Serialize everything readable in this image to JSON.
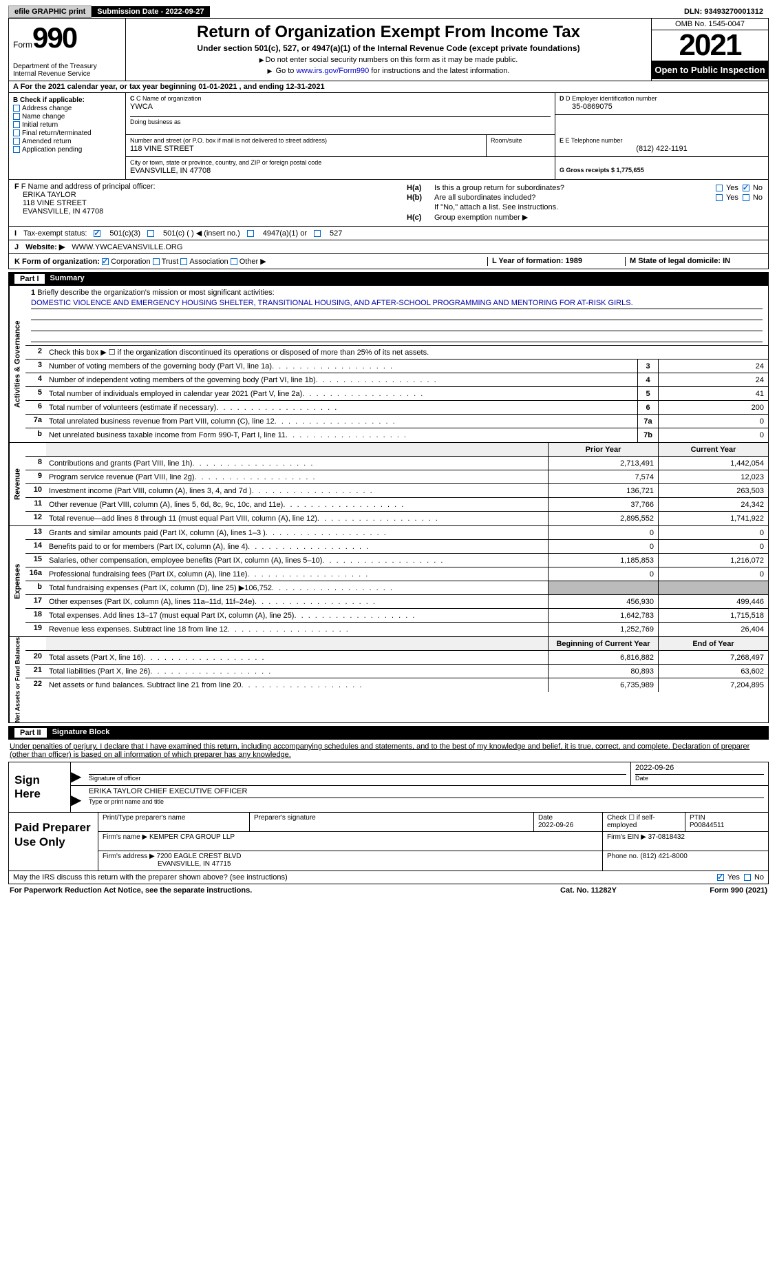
{
  "topbar": {
    "efile_label": "efile GRAPHIC print",
    "submission_label": "Submission Date - 2022-09-27",
    "dln_label": "DLN: 93493270001312"
  },
  "header": {
    "form_word": "Form",
    "form_num": "990",
    "dept": "Department of the Treasury Internal Revenue Service",
    "title": "Return of Organization Exempt From Income Tax",
    "subtitle1": "Under section 501(c), 527, or 4947(a)(1) of the Internal Revenue Code (except private foundations)",
    "subtitle2a": "Do not enter social security numbers on this form as it may be made public.",
    "subtitle2b_pre": "Go to ",
    "subtitle2b_link": "www.irs.gov/Form990",
    "subtitle2b_post": " for instructions and the latest information.",
    "omb": "OMB No. 1545-0047",
    "year": "2021",
    "open": "Open to Public Inspection"
  },
  "row_a": "A For the 2021 calendar year, or tax year beginning 01-01-2021   , and ending 12-31-2021",
  "col_b": {
    "head": "B Check if applicable:",
    "opts": [
      "Address change",
      "Name change",
      "Initial return",
      "Final return/terminated",
      "Amended return",
      "Application pending"
    ]
  },
  "col_c": {
    "name_lbl": "C Name of organization",
    "name": "YWCA",
    "dba_lbl": "Doing business as",
    "street_lbl": "Number and street (or P.O. box if mail is not delivered to street address)",
    "street": "118 VINE STREET",
    "room_lbl": "Room/suite",
    "city_lbl": "City or town, state or province, country, and ZIP or foreign postal code",
    "city": "EVANSVILLE, IN  47708"
  },
  "col_d": {
    "ein_lbl": "D Employer identification number",
    "ein": "35-0869075",
    "phone_lbl": "E Telephone number",
    "phone": "(812) 422-1191",
    "gross_lbl": "G Gross receipts $ 1,775,655"
  },
  "col_f": {
    "lbl": "F Name and address of principal officer:",
    "name": "ERIKA TAYLOR",
    "addr1": "118 VINE STREET",
    "addr2": "EVANSVILLE, IN  47708"
  },
  "col_h": {
    "a1": "H(a)",
    "a1txt": "Is this a group return for subordinates?",
    "b1": "H(b)",
    "b1txt": "Are all subordinates included?",
    "note": "If \"No,\" attach a list. See instructions.",
    "c1": "H(c)",
    "c1txt": "Group exemption number ▶"
  },
  "row_i": {
    "lbl": "I",
    "txt": "Tax-exempt status:",
    "o1": "501(c)(3)",
    "o2": "501(c) (  ) ◀ (insert no.)",
    "o3": "4947(a)(1) or",
    "o4": "527"
  },
  "row_j": {
    "lbl": "J",
    "txt": "Website: ▶",
    "val": "WWW.YWCAEVANSVILLE.ORG"
  },
  "row_k": {
    "lbl": "K Form of organization:",
    "o1": "Corporation",
    "o2": "Trust",
    "o3": "Association",
    "o4": "Other ▶",
    "l_lbl": "L Year of formation: 1989",
    "m_lbl": "M State of legal domicile: IN"
  },
  "part1": {
    "num": "Part I",
    "title": "Summary"
  },
  "side_labels": [
    "Activities & Governance",
    "Revenue",
    "Expenses",
    "Net Assets or Fund Balances"
  ],
  "mission": {
    "lbl": "1",
    "desc": "Briefly describe the organization's mission or most significant activities:",
    "text": "DOMESTIC VIOLENCE AND EMERGENCY HOUSING SHELTER, TRANSITIONAL HOUSING, AND AFTER-SCHOOL PROGRAMMING AND MENTORING FOR AT-RISK GIRLS."
  },
  "line2": "Check this box ▶ ☐ if the organization discontinued its operations or disposed of more than 25% of its net assets.",
  "gov_rows": [
    {
      "n": "3",
      "d": "Number of voting members of the governing body (Part VI, line 1a)",
      "b": "3",
      "v": "24"
    },
    {
      "n": "4",
      "d": "Number of independent voting members of the governing body (Part VI, line 1b)",
      "b": "4",
      "v": "24"
    },
    {
      "n": "5",
      "d": "Total number of individuals employed in calendar year 2021 (Part V, line 2a)",
      "b": "5",
      "v": "41"
    },
    {
      "n": "6",
      "d": "Total number of volunteers (estimate if necessary)",
      "b": "6",
      "v": "200"
    },
    {
      "n": "7a",
      "d": "Total unrelated business revenue from Part VIII, column (C), line 12",
      "b": "7a",
      "v": "0"
    },
    {
      "n": "b",
      "d": "Net unrelated business taxable income from Form 990-T, Part I, line 11",
      "b": "7b",
      "v": "0"
    }
  ],
  "py_cy_header": {
    "py": "Prior Year",
    "cy": "Current Year"
  },
  "rev_rows": [
    {
      "n": "8",
      "d": "Contributions and grants (Part VIII, line 1h)",
      "py": "2,713,491",
      "cy": "1,442,054"
    },
    {
      "n": "9",
      "d": "Program service revenue (Part VIII, line 2g)",
      "py": "7,574",
      "cy": "12,023"
    },
    {
      "n": "10",
      "d": "Investment income (Part VIII, column (A), lines 3, 4, and 7d )",
      "py": "136,721",
      "cy": "263,503"
    },
    {
      "n": "11",
      "d": "Other revenue (Part VIII, column (A), lines 5, 6d, 8c, 9c, 10c, and 11e)",
      "py": "37,766",
      "cy": "24,342"
    },
    {
      "n": "12",
      "d": "Total revenue—add lines 8 through 11 (must equal Part VIII, column (A), line 12)",
      "py": "2,895,552",
      "cy": "1,741,922"
    }
  ],
  "exp_rows": [
    {
      "n": "13",
      "d": "Grants and similar amounts paid (Part IX, column (A), lines 1–3 )",
      "py": "0",
      "cy": "0"
    },
    {
      "n": "14",
      "d": "Benefits paid to or for members (Part IX, column (A), line 4)",
      "py": "0",
      "cy": "0"
    },
    {
      "n": "15",
      "d": "Salaries, other compensation, employee benefits (Part IX, column (A), lines 5–10)",
      "py": "1,185,853",
      "cy": "1,216,072"
    },
    {
      "n": "16a",
      "d": "Professional fundraising fees (Part IX, column (A), line 11e)",
      "py": "0",
      "cy": "0"
    },
    {
      "n": "b",
      "d": "Total fundraising expenses (Part IX, column (D), line 25) ▶106,752",
      "py": "grey",
      "cy": "grey"
    },
    {
      "n": "17",
      "d": "Other expenses (Part IX, column (A), lines 11a–11d, 11f–24e)",
      "py": "456,930",
      "cy": "499,446"
    },
    {
      "n": "18",
      "d": "Total expenses. Add lines 13–17 (must equal Part IX, column (A), line 25)",
      "py": "1,642,783",
      "cy": "1,715,518"
    },
    {
      "n": "19",
      "d": "Revenue less expenses. Subtract line 18 from line 12",
      "py": "1,252,769",
      "cy": "26,404"
    }
  ],
  "na_header": {
    "py": "Beginning of Current Year",
    "cy": "End of Year"
  },
  "na_rows": [
    {
      "n": "20",
      "d": "Total assets (Part X, line 16)",
      "py": "6,816,882",
      "cy": "7,268,497"
    },
    {
      "n": "21",
      "d": "Total liabilities (Part X, line 26)",
      "py": "80,893",
      "cy": "63,602"
    },
    {
      "n": "22",
      "d": "Net assets or fund balances. Subtract line 21 from line 20",
      "py": "6,735,989",
      "cy": "7,204,895"
    }
  ],
  "part2": {
    "num": "Part II",
    "title": "Signature Block"
  },
  "penalty": "Under penalties of perjury, I declare that I have examined this return, including accompanying schedules and statements, and to the best of my knowledge and belief, it is true, correct, and complete. Declaration of preparer (other than officer) is based on all information of which preparer has any knowledge.",
  "sign": {
    "lbl": "Sign Here",
    "sigdate": "2022-09-26",
    "sig_sub": "Signature of officer",
    "date_sub": "Date",
    "name": "ERIKA TAYLOR  CHIEF EXECUTIVE OFFICER",
    "name_sub": "Type or print name and title"
  },
  "prep": {
    "lbl": "Paid Preparer Use Only",
    "r1": {
      "c1": "Print/Type preparer's name",
      "c2": "Preparer's signature",
      "c3l": "Date",
      "c3v": "2022-09-26",
      "c4": "Check ☐ if self-employed",
      "c5l": "PTIN",
      "c5v": "P00844511"
    },
    "r2": {
      "c1": "Firm's name    ▶ KEMPER CPA GROUP LLP",
      "c2": "Firm's EIN ▶ 37-0818432"
    },
    "r3": {
      "c1a": "Firm's address ▶ 7200 EAGLE CREST BLVD",
      "c1b": "EVANSVILLE, IN  47715",
      "c2": "Phone no. (812) 421-8000"
    }
  },
  "footer_q": "May the IRS discuss this return with the preparer shown above? (see instructions)",
  "bottom": {
    "left": "For Paperwork Reduction Act Notice, see the separate instructions.",
    "mid": "Cat. No. 11282Y",
    "right": "Form 990 (2021)"
  },
  "yes": "Yes",
  "no": "No"
}
